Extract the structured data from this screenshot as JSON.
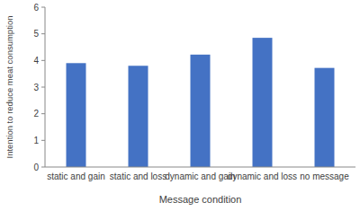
{
  "chart_data": {
    "type": "bar",
    "x_label": "Message condition",
    "y_label": "Intention to reduce meat consumption",
    "categories": [
      "static and gain",
      "static and loss",
      "dynamic and gain",
      "dynamic and loss",
      "no message"
    ],
    "values": [
      3.9,
      3.8,
      4.22,
      4.85,
      3.72
    ],
    "color": "#4472c4",
    "ylim": [
      0,
      6
    ],
    "yticks": [
      0,
      1,
      2,
      3,
      4,
      5,
      6
    ],
    "grid": false
  }
}
